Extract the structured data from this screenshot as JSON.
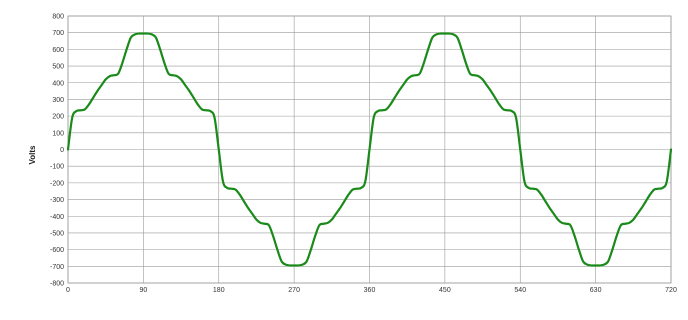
{
  "chart_data": {
    "type": "line",
    "title": "",
    "xlabel": "",
    "ylabel": "Volts",
    "xlim": [
      0,
      720
    ],
    "ylim": [
      -800,
      800
    ],
    "x_ticks": [
      0,
      90,
      180,
      270,
      360,
      450,
      540,
      630,
      720
    ],
    "x_tick_labels": [
      "0",
      "90",
      "180",
      "270",
      "360",
      "450",
      "540",
      "630",
      "720"
    ],
    "y_ticks": [
      800,
      700,
      600,
      500,
      400,
      300,
      200,
      100,
      0,
      -100,
      -200,
      -300,
      -400,
      -500,
      -600,
      -700,
      -800
    ],
    "y_tick_labels": [
      "800",
      "700",
      "600",
      "500",
      "400",
      "300",
      "200",
      "100",
      "0",
      "-100",
      "-200",
      "-300",
      "-400",
      "-500",
      "-600",
      "-700",
      "-800"
    ],
    "grid": true,
    "legend": "none",
    "series": [
      {
        "color": "#1a8a1a",
        "x": [
          0,
          5,
          10,
          15,
          20,
          25,
          30,
          35,
          40,
          45,
          50,
          55,
          60,
          65,
          70,
          75,
          80,
          85,
          90,
          95,
          100,
          105,
          110,
          115,
          120,
          125,
          130,
          135,
          140,
          145,
          150,
          155,
          160,
          165,
          170,
          175,
          180,
          185,
          190,
          195,
          200,
          205,
          210,
          215,
          220,
          225,
          230,
          235,
          240,
          245,
          250,
          255,
          260,
          265,
          270,
          275,
          280,
          285,
          290,
          295,
          300,
          305,
          310,
          315,
          320,
          325,
          330,
          335,
          340,
          345,
          350,
          355,
          360,
          365,
          370,
          375,
          380,
          385,
          390,
          395,
          400,
          405,
          410,
          415,
          420,
          425,
          430,
          435,
          440,
          445,
          450,
          455,
          460,
          465,
          470,
          475,
          480,
          485,
          490,
          495,
          500,
          505,
          510,
          515,
          520,
          525,
          530,
          535,
          540,
          545,
          550,
          555,
          560,
          565,
          570,
          575,
          580,
          585,
          590,
          595,
          600,
          605,
          610,
          615,
          620,
          625,
          630,
          635,
          640,
          645,
          650,
          655,
          660,
          665,
          670,
          675,
          680,
          685,
          690,
          695,
          700,
          705,
          710,
          715,
          720
        ],
        "y": [
          0,
          190,
          230,
          235,
          240,
          270,
          310,
          350,
          385,
          420,
          440,
          445,
          455,
          520,
          600,
          670,
          690,
          695,
          695,
          695,
          690,
          670,
          600,
          520,
          455,
          445,
          440,
          420,
          385,
          350,
          310,
          270,
          240,
          235,
          230,
          190,
          0,
          -190,
          -230,
          -235,
          -240,
          -270,
          -310,
          -350,
          -385,
          -420,
          -440,
          -445,
          -455,
          -520,
          -600,
          -670,
          -690,
          -695,
          -695,
          -695,
          -690,
          -670,
          -600,
          -520,
          -455,
          -445,
          -440,
          -420,
          -385,
          -350,
          -310,
          -270,
          -240,
          -235,
          -230,
          -190,
          0,
          190,
          230,
          235,
          240,
          270,
          310,
          350,
          385,
          420,
          440,
          445,
          455,
          520,
          600,
          670,
          690,
          695,
          695,
          695,
          690,
          670,
          600,
          520,
          455,
          445,
          440,
          420,
          385,
          350,
          310,
          270,
          240,
          235,
          230,
          190,
          0,
          -190,
          -230,
          -235,
          -240,
          -270,
          -310,
          -350,
          -385,
          -420,
          -440,
          -445,
          -455,
          -520,
          -600,
          -670,
          -690,
          -695,
          -695,
          -695,
          -690,
          -670,
          -600,
          -520,
          -455,
          -445,
          -440,
          -420,
          -385,
          -350,
          -310,
          -270,
          -240,
          -235,
          -230,
          -190,
          0
        ]
      }
    ]
  }
}
